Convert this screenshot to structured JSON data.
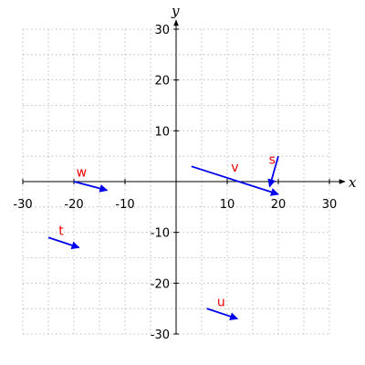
{
  "chart_data": {
    "type": "vector-field",
    "xlabel": "x",
    "ylabel": "y",
    "xlim": [
      -30,
      30
    ],
    "ylim": [
      -30,
      30
    ],
    "xticks": [
      -30,
      -20,
      -10,
      10,
      20,
      30
    ],
    "yticks": [
      -30,
      -20,
      -10,
      10,
      20,
      30
    ],
    "grid": true,
    "vector_color": "#0000ee",
    "label_color": "#ee0000",
    "vectors": [
      {
        "name": "w",
        "x0": -20,
        "y0": 0,
        "x1": -13.5,
        "y1": -1.7
      },
      {
        "name": "v",
        "x0": 3,
        "y0": 3,
        "x1": 20,
        "y1": -2.5
      },
      {
        "name": "s",
        "x0": 20,
        "y0": 5,
        "x1": 18.3,
        "y1": -1
      },
      {
        "name": "t",
        "x0": -25,
        "y0": -11,
        "x1": -19,
        "y1": -13
      },
      {
        "name": "u",
        "x0": 6,
        "y0": -25,
        "x1": 12,
        "y1": -27
      }
    ],
    "vector_labels": [
      {
        "name": "w",
        "x": -18.5,
        "y": 1
      },
      {
        "name": "v",
        "x": 11.5,
        "y": 2
      },
      {
        "name": "s",
        "x": 18.8,
        "y": 3.5
      },
      {
        "name": "t",
        "x": -22.5,
        "y": -10.5
      },
      {
        "name": "u",
        "x": 8.8,
        "y": -24.5
      }
    ]
  }
}
